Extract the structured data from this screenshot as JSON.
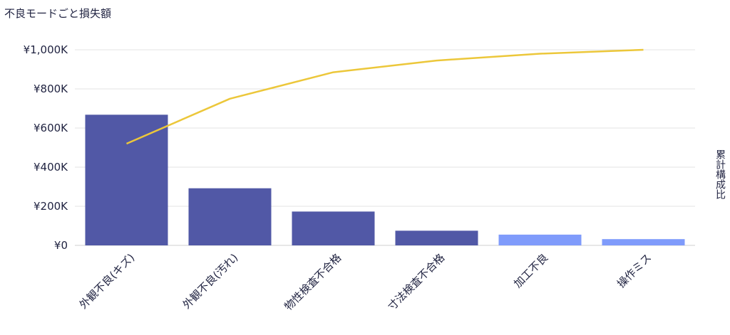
{
  "chart_data": {
    "type": "bar",
    "title": "不良モードごと損失額",
    "y2label": "累計構成比",
    "categories": [
      "外観不良(キズ)",
      "外観不良(汚れ)",
      "物性検査不合格",
      "寸法検査不合格",
      "加工不良",
      "操作ミス"
    ],
    "yticks": [
      "¥0",
      "¥200K",
      "¥400K",
      "¥600K",
      "¥800K",
      "¥1,000K"
    ],
    "ylim": [
      0,
      1000000
    ],
    "series": [
      {
        "type": "bar",
        "values": [
          668000,
          292000,
          173000,
          75000,
          55000,
          32000
        ]
      },
      {
        "type": "line",
        "values": [
          0.52,
          0.75,
          0.885,
          0.945,
          0.98,
          1.0
        ]
      }
    ],
    "colors": {
      "bar_primary": "#5158a6",
      "bar_highlight": "#7f9bfb",
      "line": "#ecc73a",
      "grid": "#e3e3e3"
    },
    "highlighted_categories": [
      "加工不良",
      "操作ミス"
    ],
    "grid": true
  }
}
